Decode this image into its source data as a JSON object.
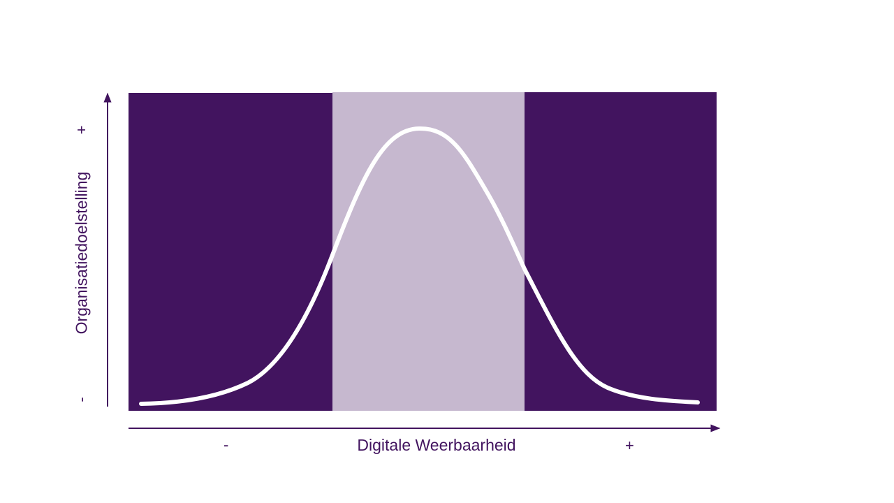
{
  "diagram": {
    "x_axis": {
      "title": "Digitale Weerbaarheid",
      "low_label": "-",
      "high_label": "+"
    },
    "y_axis": {
      "title": "Organisatiedoelstelling",
      "low_label": "-",
      "high_label": "+"
    },
    "zones": [
      {
        "name": "left-zone",
        "color": "#42145f"
      },
      {
        "name": "middle-zone",
        "color": "#c6b8cf"
      },
      {
        "name": "right-zone",
        "color": "#42145f"
      }
    ],
    "curve": {
      "shape": "bell-curve",
      "color": "#ffffff"
    },
    "axis_color": "#42145f"
  }
}
